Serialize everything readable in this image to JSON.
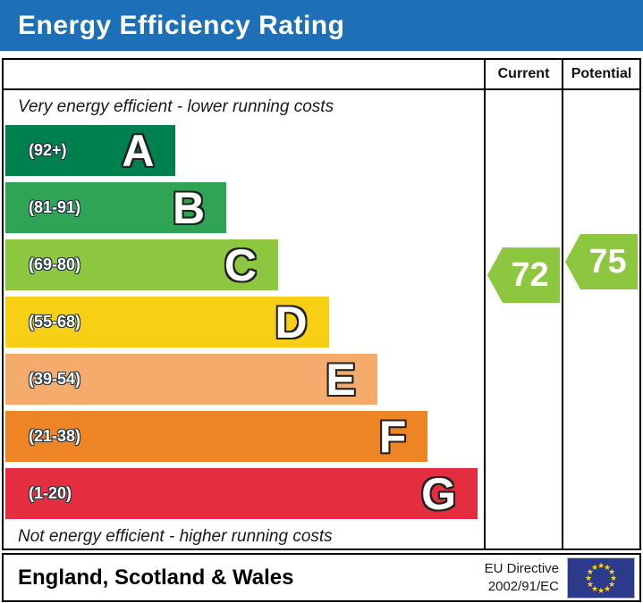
{
  "title": "Energy Efficiency Rating",
  "columns": {
    "current": "Current",
    "potential": "Potential"
  },
  "top_note": "Very energy efficient - lower running costs",
  "bottom_note": "Not energy efficient - higher running costs",
  "bands": [
    {
      "letter": "A",
      "range": "(92+)",
      "color": "#00804f",
      "width_pct": 35.6
    },
    {
      "letter": "B",
      "range": "(81-91)",
      "color": "#30a455",
      "width_pct": 46.2
    },
    {
      "letter": "C",
      "range": "(69-80)",
      "color": "#8dc63f",
      "width_pct": 57.0
    },
    {
      "letter": "D",
      "range": "(55-68)",
      "color": "#f7d015",
      "width_pct": 67.6
    },
    {
      "letter": "E",
      "range": "(39-54)",
      "color": "#f5ab6c",
      "width_pct": 77.7
    },
    {
      "letter": "F",
      "range": "(21-38)",
      "color": "#ee8424",
      "width_pct": 88.3
    },
    {
      "letter": "G",
      "range": "(1-20)",
      "color": "#e42d3e",
      "width_pct": 98.7
    }
  ],
  "ratings": {
    "current": {
      "value": "72",
      "band": "C",
      "color": "#8dc63f"
    },
    "potential": {
      "value": "75",
      "band": "C",
      "color": "#8dc63f"
    }
  },
  "footer": {
    "region": "England, Scotland & Wales",
    "directive_line1": "EU Directive",
    "directive_line2": "2002/91/EC"
  },
  "colors": {
    "header_bg": "#1d70b8",
    "header_text": "#ffffff",
    "border": "#000000",
    "flag_bg": "#2c3a8c",
    "flag_stars": "#ffd617"
  },
  "chart_data": {
    "type": "bar",
    "title": "Energy Efficiency Rating",
    "categories": [
      "A",
      "B",
      "C",
      "D",
      "E",
      "F",
      "G"
    ],
    "band_ranges": [
      "92+",
      "81-91",
      "69-80",
      "55-68",
      "39-54",
      "21-38",
      "1-20"
    ],
    "band_colors": [
      "#00804f",
      "#30a455",
      "#8dc63f",
      "#f7d015",
      "#f5ab6c",
      "#ee8424",
      "#e42d3e"
    ],
    "bar_width_pct": [
      35.6,
      46.2,
      57.0,
      67.6,
      77.7,
      88.3,
      98.7
    ],
    "series": [
      {
        "name": "Current",
        "value": 72,
        "band": "C"
      },
      {
        "name": "Potential",
        "value": 75,
        "band": "C"
      }
    ],
    "scale_min": 1,
    "scale_max": 100,
    "annotations": [
      "Very energy efficient - lower running costs",
      "Not energy efficient - higher running costs"
    ],
    "footer_region": "England, Scotland & Wales",
    "footer_directive": "EU Directive 2002/91/EC",
    "legend_position": "none",
    "grid": false
  }
}
